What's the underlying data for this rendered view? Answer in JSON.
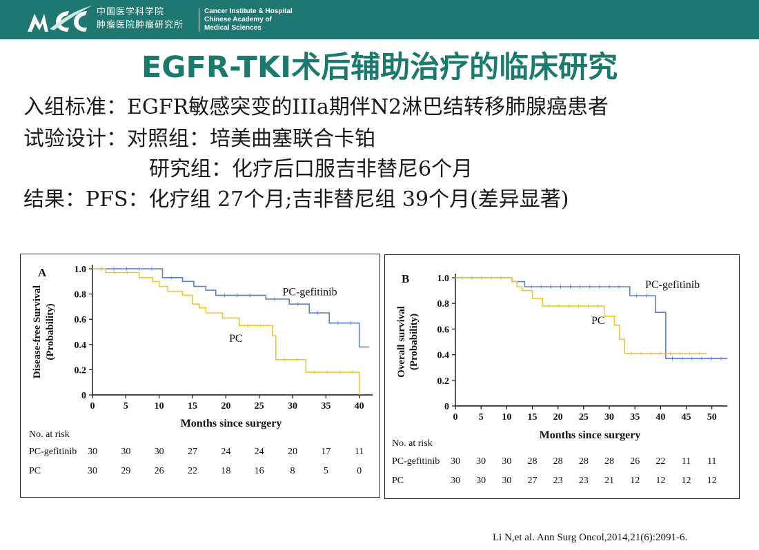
{
  "header": {
    "cn_name_line1": "中国医学科学院",
    "cn_name_line2": "肿瘤医院肿瘤研究所",
    "en_name_line1": "Cancer Institute & Hospital",
    "en_name_line2": "Chinese Academy of",
    "en_name_line3": "Medical Sciences",
    "brand_color": "#1e7770"
  },
  "slide": {
    "title": "EGFR-TKI术后辅助治疗的临床研究",
    "lines": {
      "criteria": "入组标准：EGFR敏感突变的IIIa期伴N2淋巴结转移肺腺癌患者",
      "design": "试验设计：对照组：培美曲塞联合卡铂",
      "design2": "研究组：化疗后口服吉非替尼6个月",
      "result": "结果：PFS：化疗组 27个月;吉非替尼组 39个月(差异显著)"
    },
    "citation": "Li N,et al. Ann Surg Oncol,2014,21(6):2091-6."
  },
  "chart_data": [
    {
      "type": "line",
      "panel_label": "A",
      "ylabel": "Disease-free Survival (Probability)",
      "ylabel_line1": "Disease-free Survival",
      "ylabel_line2": "(Probability)",
      "xlabel": "Months since surgery",
      "xlim": [
        0,
        42
      ],
      "ylim": [
        0,
        1.0
      ],
      "x_ticks": [
        0,
        5,
        10,
        15,
        20,
        25,
        30,
        35,
        40
      ],
      "y_ticks": [
        0,
        0.2,
        0.4,
        0.6,
        0.8,
        1.0
      ],
      "y_tick_labels": [
        "0",
        "0.2",
        "0.4",
        "0.6",
        "0.8",
        "1.0"
      ],
      "series": [
        {
          "name": "PC-gefitinib",
          "color": "#5b7fd8",
          "steps": [
            [
              0,
              1.0
            ],
            [
              10.5,
              1.0
            ],
            [
              10.5,
              0.93
            ],
            [
              13.5,
              0.93
            ],
            [
              13.5,
              0.9
            ],
            [
              15.2,
              0.9
            ],
            [
              15.2,
              0.86
            ],
            [
              17,
              0.86
            ],
            [
              17,
              0.83
            ],
            [
              18.5,
              0.83
            ],
            [
              18.5,
              0.79
            ],
            [
              26,
              0.79
            ],
            [
              26,
              0.76
            ],
            [
              29.5,
              0.76
            ],
            [
              29.5,
              0.72
            ],
            [
              32.5,
              0.72
            ],
            [
              32.5,
              0.65
            ],
            [
              35.5,
              0.65
            ],
            [
              35.5,
              0.57
            ],
            [
              40,
              0.57
            ],
            [
              40,
              0.38
            ],
            [
              41.5,
              0.38
            ]
          ]
        },
        {
          "name": "PC",
          "color": "#f0c531",
          "steps": [
            [
              0,
              1.0
            ],
            [
              2,
              1.0
            ],
            [
              2,
              0.97
            ],
            [
              7,
              0.97
            ],
            [
              7,
              0.93
            ],
            [
              9,
              0.93
            ],
            [
              9,
              0.9
            ],
            [
              10,
              0.9
            ],
            [
              10,
              0.86
            ],
            [
              11.3,
              0.86
            ],
            [
              11.3,
              0.82
            ],
            [
              13.5,
              0.82
            ],
            [
              13.5,
              0.79
            ],
            [
              15,
              0.79
            ],
            [
              15,
              0.72
            ],
            [
              16,
              0.72
            ],
            [
              16,
              0.69
            ],
            [
              17,
              0.69
            ],
            [
              17,
              0.65
            ],
            [
              19.5,
              0.65
            ],
            [
              19.5,
              0.61
            ],
            [
              22,
              0.61
            ],
            [
              22,
              0.55
            ],
            [
              27,
              0.55
            ],
            [
              27,
              0.47
            ],
            [
              27.5,
              0.47
            ],
            [
              27.5,
              0.28
            ],
            [
              32,
              0.28
            ],
            [
              32,
              0.18
            ],
            [
              40,
              0.18
            ],
            [
              40,
              0.0
            ]
          ]
        }
      ],
      "annotations": [
        {
          "text": "PC-gefitinib",
          "x": 28.5,
          "y": 0.79
        },
        {
          "text": "PC",
          "x": 20.5,
          "y": 0.42
        }
      ],
      "risk_table": {
        "title": "No. at risk",
        "rows": [
          {
            "label": "PC-gefitinib",
            "values": [
              "30",
              "30",
              "30",
              "27",
              "24",
              "24",
              "20",
              "17",
              "11"
            ]
          },
          {
            "label": "PC",
            "values": [
              "30",
              "29",
              "26",
              "22",
              "18",
              "16",
              "8",
              "5",
              "0"
            ]
          }
        ]
      }
    },
    {
      "type": "line",
      "panel_label": "B",
      "ylabel": "Overall survival (Probability)",
      "ylabel_line1": "Overall survival",
      "ylabel_line2": "(Probability)",
      "xlabel": "Months since surgery",
      "xlim": [
        0,
        53
      ],
      "ylim": [
        0,
        1.0
      ],
      "x_ticks": [
        0,
        5,
        10,
        15,
        20,
        25,
        30,
        35,
        40,
        45,
        50
      ],
      "y_ticks": [
        0,
        0.2,
        0.4,
        0.6,
        0.8,
        1.0
      ],
      "y_tick_labels": [
        "0",
        "0.2",
        "0.4",
        "0.6",
        "0.8",
        "1.0"
      ],
      "series": [
        {
          "name": "PC-gefitinib",
          "color": "#5b7fd8",
          "steps": [
            [
              0,
              1.0
            ],
            [
              11,
              1.0
            ],
            [
              11,
              0.97
            ],
            [
              13.5,
              0.97
            ],
            [
              13.5,
              0.93
            ],
            [
              34,
              0.93
            ],
            [
              34,
              0.86
            ],
            [
              39,
              0.86
            ],
            [
              39,
              0.73
            ],
            [
              41,
              0.73
            ],
            [
              41,
              0.37
            ],
            [
              53,
              0.37
            ]
          ]
        },
        {
          "name": "PC",
          "color": "#f0c531",
          "steps": [
            [
              0,
              1.0
            ],
            [
              11,
              1.0
            ],
            [
              11,
              0.97
            ],
            [
              12,
              0.97
            ],
            [
              12,
              0.93
            ],
            [
              13,
              0.93
            ],
            [
              13,
              0.9
            ],
            [
              15,
              0.9
            ],
            [
              15,
              0.84
            ],
            [
              17,
              0.84
            ],
            [
              17,
              0.78
            ],
            [
              29,
              0.78
            ],
            [
              29,
              0.7
            ],
            [
              31,
              0.7
            ],
            [
              31,
              0.63
            ],
            [
              32,
              0.63
            ],
            [
              32,
              0.52
            ],
            [
              33,
              0.52
            ],
            [
              33,
              0.41
            ],
            [
              49,
              0.41
            ]
          ]
        }
      ],
      "annotations": [
        {
          "text": "PC-gefitinib",
          "x": 37,
          "y": 0.92
        },
        {
          "text": "PC",
          "x": 26.5,
          "y": 0.64
        }
      ],
      "risk_table": {
        "title": "No. at risk",
        "rows": [
          {
            "label": "PC-gefitinib",
            "values": [
              "30",
              "30",
              "30",
              "28",
              "28",
              "28",
              "28",
              "26",
              "22",
              "11",
              "11"
            ]
          },
          {
            "label": "PC",
            "values": [
              "30",
              "30",
              "30",
              "27",
              "23",
              "23",
              "21",
              "12",
              "12",
              "12",
              "12"
            ]
          }
        ]
      }
    }
  ]
}
